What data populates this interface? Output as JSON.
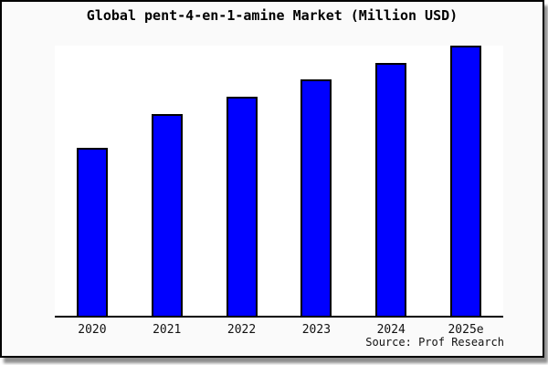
{
  "chart_data": {
    "type": "bar",
    "title": "Global pent-4-en-1-amine Market (Million USD)",
    "categories": [
      "2020",
      "2021",
      "2022",
      "2023",
      "2024",
      "2025e"
    ],
    "values": [
      62.3,
      74.7,
      81.1,
      87.5,
      93.6,
      100
    ],
    "xlabel": "",
    "ylabel": "",
    "ylim": [
      0,
      100
    ],
    "y_axis_labels_visible": false,
    "grid": false,
    "legend": "none",
    "bar_color": "#0000ff",
    "bar_border_color": "#000000",
    "note": "No y-axis scale or value labels are shown in the chart; values are relative bar heights normalized so 2025e = 100"
  },
  "footer": {
    "source": "Source: Prof Research"
  },
  "colors": {
    "page_background": "#fafafa",
    "plot_background": "#ffffff",
    "frame_border": "#000000",
    "bar_fill": "#0000ff",
    "shadow": "#8f8f8f"
  }
}
